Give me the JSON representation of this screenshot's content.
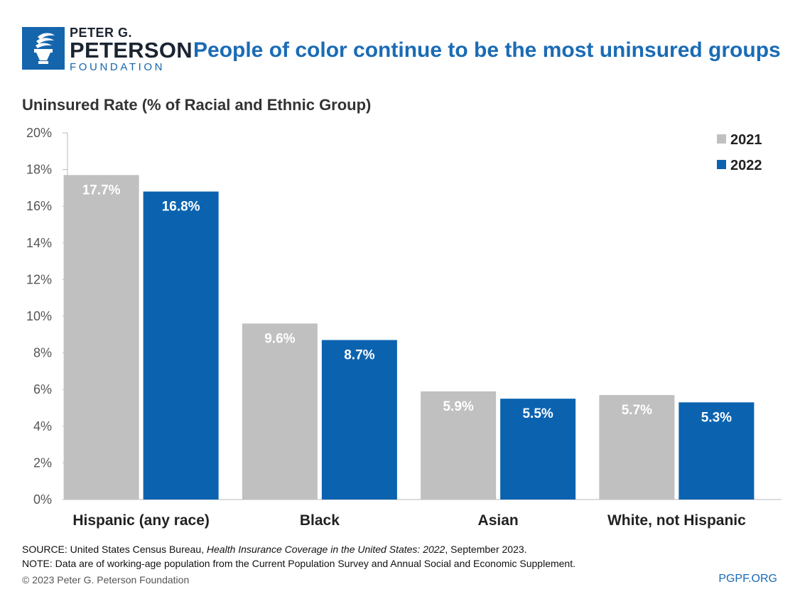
{
  "logo": {
    "line1": "PETER G.",
    "line2": "PETERSON",
    "line3": "FOUNDATION",
    "icon": "torch-icon"
  },
  "headline": "People of color continue to be the most uninsured groups",
  "colors": {
    "brand": "#1565ad",
    "series_2021": "#c0c0c0",
    "series_2022": "#0b63b0",
    "headline": "#1a6bb5"
  },
  "chart_data": {
    "type": "bar",
    "ylabel": "Uninsured Rate (% of Racial and Ethnic Group)",
    "ylim": [
      0,
      20
    ],
    "yticks": [
      "0%",
      "2%",
      "4%",
      "6%",
      "8%",
      "10%",
      "12%",
      "14%",
      "16%",
      "18%",
      "20%"
    ],
    "categories": [
      "Hispanic (any race)",
      "Black",
      "Asian",
      "White, not Hispanic"
    ],
    "series": [
      {
        "name": "2021",
        "values": [
          17.7,
          9.6,
          5.9,
          5.7
        ],
        "labels": [
          "17.7%",
          "9.6%",
          "5.9%",
          "5.7%"
        ]
      },
      {
        "name": "2022",
        "values": [
          16.8,
          8.7,
          5.5,
          5.3
        ],
        "labels": [
          "16.8%",
          "8.7%",
          "5.5%",
          "5.3%"
        ]
      }
    ],
    "legend_position": "top-right",
    "grid": false
  },
  "footer": {
    "source_prefix": "SOURCE: United States Census Bureau, ",
    "source_title": "Health Insurance Coverage in the United States: 2022",
    "source_suffix": ", September 2023.",
    "note": "NOTE: Data are of working-age population from the Current Population Survey and Annual Social and Economic Supplement.",
    "copyright": "© 2023 Peter G. Peterson Foundation",
    "url": "PGPF.ORG"
  }
}
